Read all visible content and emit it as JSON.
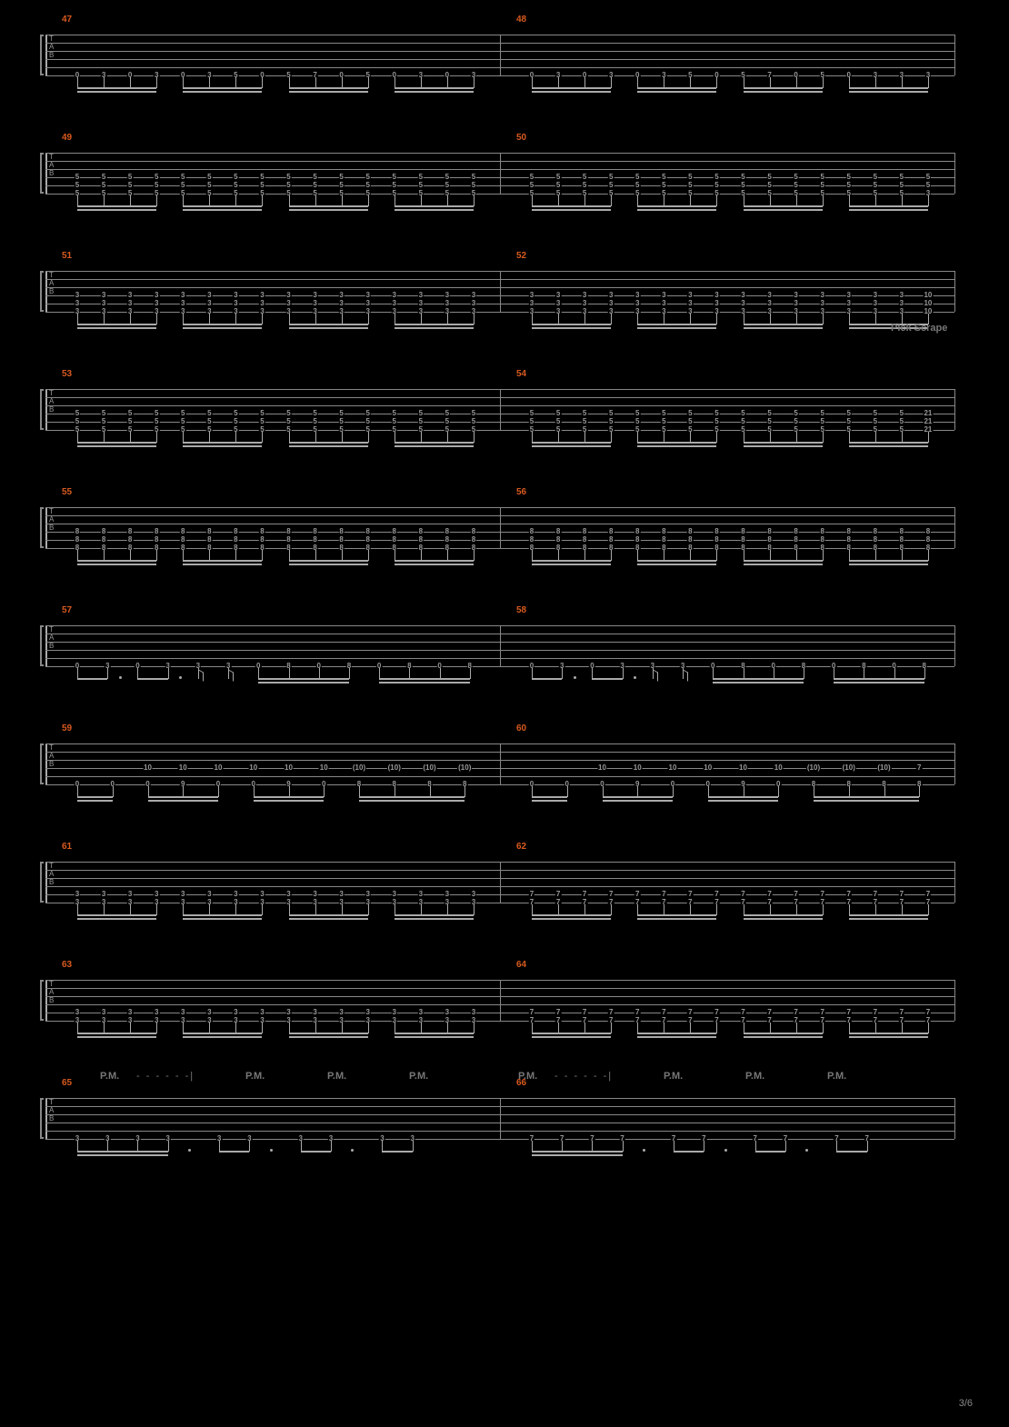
{
  "page_number": "3/6",
  "background_color": "#000000",
  "line_color": "#888888",
  "measure_number_color": "#d85a1f",
  "fret_color": "#999999",
  "annotation_color": "#777777",
  "staff_rows": [
    {
      "measures": [
        {
          "number": "47",
          "x": 0
        },
        {
          "number": "48",
          "x": 0.5
        }
      ],
      "notes_pattern": "pattern_a",
      "pattern_data": {
        "frets_m1": [
          "0",
          "3",
          "0",
          "3",
          "0",
          "3",
          "5",
          "0",
          "5",
          "7",
          "0",
          "5",
          "0",
          "3",
          "0",
          "3"
        ],
        "frets_m2": [
          "0",
          "3",
          "0",
          "3",
          "0",
          "3",
          "5",
          "0",
          "5",
          "7",
          "0",
          "5",
          "0",
          "3",
          "3",
          "3"
        ],
        "string": 5
      }
    },
    {
      "measures": [
        {
          "number": "49",
          "x": 0
        },
        {
          "number": "50",
          "x": 0.5
        }
      ],
      "notes_pattern": "pattern_chord",
      "pattern_data": {
        "chord_top": "5",
        "chord_mid": "5",
        "chord_bot": "5",
        "end_chord": {
          "top": "5",
          "mid": "5",
          "bot": "3"
        },
        "strings": [
          3,
          4,
          5
        ]
      }
    },
    {
      "measures": [
        {
          "number": "51",
          "x": 0
        },
        {
          "number": "52",
          "x": 0.5
        }
      ],
      "notes_pattern": "pattern_chord",
      "pattern_data": {
        "chord_top": "3",
        "chord_mid": "3",
        "chord_bot": "3",
        "end_chord": {
          "top": "10",
          "mid": "10",
          "bot": "10"
        },
        "strings": [
          3,
          4,
          5
        ]
      },
      "annotation": {
        "text": "Pick Scrape",
        "x": 0.93,
        "y": -18
      }
    },
    {
      "measures": [
        {
          "number": "53",
          "x": 0
        },
        {
          "number": "54",
          "x": 0.5
        }
      ],
      "notes_pattern": "pattern_chord",
      "pattern_data": {
        "chord_top": "5",
        "chord_mid": "5",
        "chord_bot": "5",
        "end_chord": {
          "top": "21",
          "mid": "21",
          "bot": "21"
        },
        "strings": [
          3,
          4,
          5
        ]
      }
    },
    {
      "measures": [
        {
          "number": "55",
          "x": 0
        },
        {
          "number": "56",
          "x": 0.5
        }
      ],
      "notes_pattern": "pattern_chord",
      "pattern_data": {
        "chord_top": "8",
        "chord_mid": "8",
        "chord_bot": "8",
        "end_chord": {
          "top": "8",
          "mid": "8",
          "bot": "8"
        },
        "strings": [
          3,
          4,
          5
        ]
      }
    },
    {
      "measures": [
        {
          "number": "57",
          "x": 0
        },
        {
          "number": "58",
          "x": 0.5
        }
      ],
      "notes_pattern": "pattern_b",
      "pattern_data": {
        "groups": [
          {
            "frets": [
              "0",
              "3"
            ],
            "dotted": true
          },
          {
            "frets": [
              "0",
              "3"
            ],
            "dotted": true
          },
          {
            "frets": [
              "3"
            ],
            "flag": true
          },
          {
            "frets": [
              "3"
            ],
            "flag": true
          },
          {
            "frets": [
              "0",
              "8",
              "0",
              "8"
            ]
          },
          {
            "frets": [
              "0",
              "8",
              "0",
              "8"
            ]
          }
        ],
        "string": 5
      }
    },
    {
      "measures": [
        {
          "number": "59",
          "x": 0
        },
        {
          "number": "60",
          "x": 0.5
        }
      ],
      "notes_pattern": "pattern_c",
      "pattern_data": {
        "groups_m1": [
          {
            "lo": "0",
            "hi": null
          },
          {
            "lo": "0",
            "hi": null
          },
          {
            "lo": "0",
            "hi": "10"
          },
          {
            "lo": "9",
            "hi": "10"
          },
          {
            "lo": "0",
            "hi": "10"
          },
          {
            "lo": "0",
            "hi": "10"
          },
          {
            "lo": "9",
            "hi": "10"
          },
          {
            "lo": "0",
            "hi": "10"
          },
          {
            "lo": "8",
            "hi": "(10)"
          },
          {
            "lo": "8",
            "hi": "(10)"
          },
          {
            "lo": "8",
            "hi": "(10)"
          },
          {
            "lo": "8",
            "hi": "(10)"
          }
        ],
        "groups_m2": [
          {
            "lo": "0",
            "hi": null
          },
          {
            "lo": "0",
            "hi": null
          },
          {
            "lo": "0",
            "hi": "10"
          },
          {
            "lo": "9",
            "hi": "10"
          },
          {
            "lo": "0",
            "hi": "10"
          },
          {
            "lo": "0",
            "hi": "10"
          },
          {
            "lo": "9",
            "hi": "10"
          },
          {
            "lo": "0",
            "hi": "10"
          },
          {
            "lo": "8",
            "hi": "(10)"
          },
          {
            "lo": "8",
            "hi": "(10)"
          },
          {
            "lo": "8",
            "hi": "(10)"
          },
          {
            "lo": "8",
            "hi": "7"
          }
        ]
      }
    },
    {
      "measures": [
        {
          "number": "61",
          "x": 0
        },
        {
          "number": "62",
          "x": 0.5
        }
      ],
      "notes_pattern": "pattern_chord16",
      "pattern_data": {
        "m1_chord": {
          "top": "3",
          "bot": "3"
        },
        "m2_chord": {
          "top": "7",
          "bot": "7"
        },
        "strings": [
          4,
          5
        ]
      }
    },
    {
      "measures": [
        {
          "number": "63",
          "x": 0
        },
        {
          "number": "64",
          "x": 0.5
        }
      ],
      "notes_pattern": "pattern_chord16",
      "pattern_data": {
        "m1_chord": {
          "top": "3",
          "bot": "3"
        },
        "m2_chord": {
          "top": "7",
          "bot": "7"
        },
        "strings": [
          4,
          5
        ]
      }
    },
    {
      "measures": [
        {
          "number": "65",
          "x": 0
        },
        {
          "number": "66",
          "x": 0.5
        }
      ],
      "notes_pattern": "pattern_d",
      "pattern_data": {
        "m1": [
          {
            "type": "group4",
            "frets": [
              "3",
              "3",
              "3",
              "3"
            ]
          },
          {
            "type": "dot"
          },
          {
            "type": "group2",
            "frets": [
              "3",
              "3"
            ]
          },
          {
            "type": "dot"
          },
          {
            "type": "group2",
            "frets": [
              "3",
              "3"
            ]
          },
          {
            "type": "dot"
          },
          {
            "type": "group2",
            "frets": [
              "3",
              "3"
            ]
          }
        ],
        "m2": [
          {
            "type": "group4",
            "frets": [
              "7",
              "7",
              "7",
              "7"
            ]
          },
          {
            "type": "dot"
          },
          {
            "type": "group2",
            "frets": [
              "7",
              "7"
            ]
          },
          {
            "type": "dot"
          },
          {
            "type": "group2",
            "frets": [
              "7",
              "7"
            ]
          },
          {
            "type": "dot"
          },
          {
            "type": "group2",
            "frets": [
              "7",
              "7"
            ]
          }
        ],
        "string": 5
      },
      "pm_annotations": [
        {
          "text": "P.M.",
          "x": 0.06
        },
        {
          "dashes": true,
          "x": 0.1,
          "w": 0.08
        },
        {
          "text": "P.M.",
          "x": 0.22
        },
        {
          "text": "P.M.",
          "x": 0.31
        },
        {
          "text": "P.M.",
          "x": 0.4
        },
        {
          "text": "P.M.",
          "x": 0.52
        },
        {
          "dashes": true,
          "x": 0.56,
          "w": 0.08
        },
        {
          "text": "P.M.",
          "x": 0.68
        },
        {
          "text": "P.M.",
          "x": 0.77
        },
        {
          "text": "P.M.",
          "x": 0.86
        }
      ]
    }
  ]
}
